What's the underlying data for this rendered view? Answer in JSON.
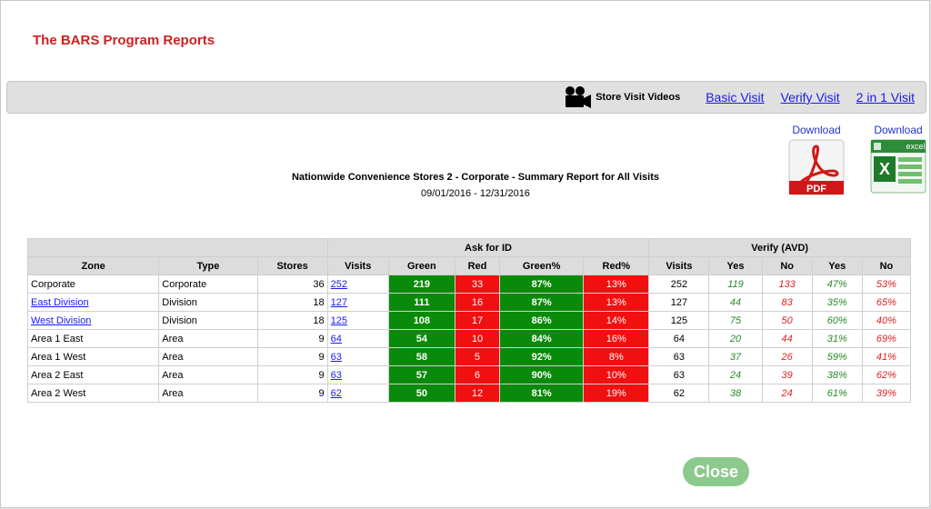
{
  "app_title": "The BARS Program Reports",
  "toolbar": {
    "video_label": "Store Visit Videos",
    "links": [
      "Basic Visit",
      "Verify Visit",
      "2 in 1 Visit"
    ]
  },
  "downloads": {
    "pdf": {
      "label": "Download",
      "icon": "pdf-icon",
      "badge": "PDF"
    },
    "excel": {
      "label": "Download",
      "icon": "excel-icon",
      "badge": "excel"
    }
  },
  "report": {
    "title": "Nationwide Convenience Stores 2 - Corporate - Summary Report for All Visits",
    "dates": "09/01/2016 - 12/31/2016"
  },
  "table": {
    "group_headers": {
      "ask_for_id": "Ask for ID",
      "verify": "Verify (AVD)"
    },
    "columns": [
      "Zone",
      "Type",
      "Stores",
      "Visits",
      "Green",
      "Red",
      "Green%",
      "Red%",
      "Visits",
      "Yes",
      "No",
      "Yes",
      "No"
    ],
    "rows": [
      {
        "zone": "Corporate",
        "zone_link": false,
        "type": "Corporate",
        "stores": "36",
        "visits": "252",
        "green": "219",
        "red": "33",
        "green_pct": "87%",
        "red_pct": "13%",
        "v_visits": "252",
        "v_yes": "119",
        "v_no": "133",
        "v_yes_pct": "47%",
        "v_no_pct": "53%"
      },
      {
        "zone": "East Division",
        "zone_link": true,
        "type": "Division",
        "stores": "18",
        "visits": "127",
        "green": "111",
        "red": "16",
        "green_pct": "87%",
        "red_pct": "13%",
        "v_visits": "127",
        "v_yes": "44",
        "v_no": "83",
        "v_yes_pct": "35%",
        "v_no_pct": "65%"
      },
      {
        "zone": "West Division",
        "zone_link": true,
        "type": "Division",
        "stores": "18",
        "visits": "125",
        "green": "108",
        "red": "17",
        "green_pct": "86%",
        "red_pct": "14%",
        "v_visits": "125",
        "v_yes": "75",
        "v_no": "50",
        "v_yes_pct": "60%",
        "v_no_pct": "40%"
      },
      {
        "zone": "Area 1 East",
        "zone_link": false,
        "type": "Area",
        "stores": "9",
        "visits": "64",
        "green": "54",
        "red": "10",
        "green_pct": "84%",
        "red_pct": "16%",
        "v_visits": "64",
        "v_yes": "20",
        "v_no": "44",
        "v_yes_pct": "31%",
        "v_no_pct": "69%"
      },
      {
        "zone": "Area 1 West",
        "zone_link": false,
        "type": "Area",
        "stores": "9",
        "visits": "63",
        "green": "58",
        "red": "5",
        "green_pct": "92%",
        "red_pct": "8%",
        "v_visits": "63",
        "v_yes": "37",
        "v_no": "26",
        "v_yes_pct": "59%",
        "v_no_pct": "41%"
      },
      {
        "zone": "Area 2 East",
        "zone_link": false,
        "type": "Area",
        "stores": "9",
        "visits": "63",
        "green": "57",
        "red": "6",
        "green_pct": "90%",
        "red_pct": "10%",
        "v_visits": "63",
        "v_yes": "24",
        "v_no": "39",
        "v_yes_pct": "38%",
        "v_no_pct": "62%"
      },
      {
        "zone": "Area 2 West",
        "zone_link": false,
        "type": "Area",
        "stores": "9",
        "visits": "62",
        "green": "50",
        "red": "12",
        "green_pct": "81%",
        "red_pct": "19%",
        "v_visits": "62",
        "v_yes": "38",
        "v_no": "24",
        "v_yes_pct": "61%",
        "v_no_pct": "39%"
      }
    ]
  },
  "close_label": "Close",
  "colors": {
    "title_red": "#cc2222",
    "cell_green": "#0a8a0a",
    "cell_red": "#f01010",
    "link_blue": "#1a1aee",
    "close_green": "#8cc98c"
  }
}
